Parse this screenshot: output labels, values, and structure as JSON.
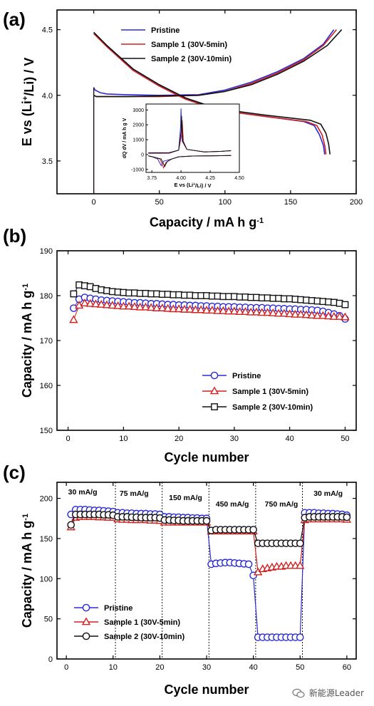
{
  "chart_data": [
    {
      "type": "line",
      "panel_label": "(a)",
      "xlabel": "Capacity / mA h g",
      "xlabel_sup": "-1",
      "ylabel_parts": [
        "E vs (Li",
        "+",
        "/Li) / V"
      ],
      "xlim": [
        -28,
        200
      ],
      "ylim": [
        3.25,
        4.65
      ],
      "xticks": [
        0,
        50,
        100,
        150,
        200
      ],
      "yticks": [
        3.5,
        4.0,
        4.5
      ],
      "legend_position": "top",
      "series": [
        {
          "name": "Pristine",
          "color": "#2b2bd6",
          "charge": [
            [
              0,
              4.06
            ],
            [
              1,
              4.04
            ],
            [
              5,
              4.02
            ],
            [
              10,
              4.01
            ],
            [
              25,
              4.005
            ],
            [
              50,
              4.0
            ],
            [
              80,
              4.005
            ],
            [
              100,
              4.04
            ],
            [
              120,
              4.1
            ],
            [
              140,
              4.18
            ],
            [
              160,
              4.28
            ],
            [
              175,
              4.39
            ],
            [
              183,
              4.5
            ]
          ],
          "discharge": [
            [
              0,
              4.47
            ],
            [
              10,
              4.38
            ],
            [
              30,
              4.2
            ],
            [
              50,
              4.08
            ],
            [
              70,
              3.98
            ],
            [
              85,
              3.92
            ],
            [
              100,
              3.88
            ],
            [
              130,
              3.84
            ],
            [
              160,
              3.8
            ],
            [
              168,
              3.77
            ],
            [
              172,
              3.7
            ],
            [
              175,
              3.62
            ],
            [
              176,
              3.55
            ]
          ]
        },
        {
          "name": "Sample 1 (30V-5min)",
          "color": "#d12020",
          "charge": [
            [
              0,
              4.0
            ],
            [
              2,
              3.99
            ],
            [
              10,
              3.99
            ],
            [
              25,
              3.99
            ],
            [
              50,
              3.99
            ],
            [
              80,
              4.0
            ],
            [
              100,
              4.03
            ],
            [
              120,
              4.09
            ],
            [
              140,
              4.17
            ],
            [
              160,
              4.27
            ],
            [
              175,
              4.38
            ],
            [
              185,
              4.5
            ]
          ],
          "discharge": [
            [
              0,
              4.47
            ],
            [
              10,
              4.37
            ],
            [
              30,
              4.19
            ],
            [
              50,
              4.07
            ],
            [
              70,
              3.97
            ],
            [
              85,
              3.92
            ],
            [
              100,
              3.88
            ],
            [
              130,
              3.84
            ],
            [
              162,
              3.8
            ],
            [
              170,
              3.77
            ],
            [
              174,
              3.7
            ],
            [
              176,
              3.62
            ],
            [
              177,
              3.55
            ]
          ]
        },
        {
          "name": "Sample 2 (30V-10min)",
          "color": "#111111",
          "charge": [
            [
              0,
              4.0
            ],
            [
              2,
              3.99
            ],
            [
              10,
              3.99
            ],
            [
              25,
              3.99
            ],
            [
              50,
              3.995
            ],
            [
              80,
              4.0
            ],
            [
              100,
              4.03
            ],
            [
              120,
              4.08
            ],
            [
              140,
              4.16
            ],
            [
              160,
              4.26
            ],
            [
              178,
              4.38
            ],
            [
              189,
              4.5
            ]
          ],
          "discharge": [
            [
              0,
              4.48
            ],
            [
              10,
              4.38
            ],
            [
              30,
              4.2
            ],
            [
              50,
              4.08
            ],
            [
              70,
              3.98
            ],
            [
              85,
              3.93
            ],
            [
              100,
              3.89
            ],
            [
              130,
              3.85
            ],
            [
              165,
              3.81
            ],
            [
              173,
              3.78
            ],
            [
              177,
              3.71
            ],
            [
              179,
              3.63
            ],
            [
              180,
              3.55
            ]
          ]
        }
      ],
      "inset": {
        "xlabel_parts": [
          "E vs (Li",
          "+",
          "/Li) / V"
        ],
        "ylabel": "dQ dV  / mA h g  V",
        "xlim": [
          3.7,
          4.5
        ],
        "ylim": [
          -1200,
          3400
        ],
        "xticks": [
          "3.75",
          "4.00",
          "4.25",
          "4.50"
        ],
        "yticks": [
          "-1000",
          "0",
          "1000",
          "2000",
          "3000"
        ],
        "charge_peaks": [
          {
            "color": "#2b2bd6",
            "peak_x": 4.0,
            "peak_y": 3100
          },
          {
            "color": "#d12020",
            "peak_x": 4.01,
            "peak_y": 2300
          },
          {
            "color": "#111111",
            "peak_x": 4.005,
            "peak_y": 2600
          }
        ],
        "discharge_peaks": [
          {
            "color": "#2b2bd6",
            "peak_x": 3.83,
            "peak_y": -750
          },
          {
            "color": "#d12020",
            "peak_x": 3.85,
            "peak_y": -900
          },
          {
            "color": "#111111",
            "peak_x": 3.86,
            "peak_y": -800
          }
        ]
      }
    },
    {
      "type": "scatter",
      "panel_label": "(b)",
      "xlabel": "Cycle number",
      "ylabel": "Capacity / mA h g",
      "ylabel_sup": "-1",
      "xlim": [
        -2,
        52
      ],
      "ylim": [
        150,
        190
      ],
      "xticks": [
        0,
        10,
        20,
        30,
        40,
        50
      ],
      "yticks": [
        150,
        160,
        170,
        180,
        190
      ],
      "legend_position": "lower-right",
      "series": [
        {
          "name": "Pristine",
          "color": "#2b2bd6",
          "marker": "circle",
          "values": [
            177.2,
            179.2,
            179.6,
            179.4,
            179.2,
            179.0,
            178.9,
            178.8,
            178.7,
            178.6,
            178.5,
            178.4,
            178.4,
            178.3,
            178.2,
            178.2,
            178.1,
            178.0,
            178.0,
            177.9,
            177.9,
            177.8,
            177.8,
            177.7,
            177.7,
            177.6,
            177.6,
            177.5,
            177.5,
            177.5,
            177.4,
            177.4,
            177.3,
            177.3,
            177.3,
            177.2,
            177.2,
            177.1,
            177.1,
            177.0,
            177.0,
            176.9,
            176.9,
            176.8,
            176.7,
            176.5,
            176.2,
            175.9,
            175.5,
            174.8
          ]
        },
        {
          "name": "Sample 1 (30V-5min)",
          "color": "#d12020",
          "marker": "triangle",
          "values": [
            174.6,
            177.8,
            178.3,
            178.2,
            178.1,
            178.0,
            177.9,
            177.8,
            177.7,
            177.6,
            177.6,
            177.5,
            177.4,
            177.4,
            177.3,
            177.2,
            177.2,
            177.1,
            177.0,
            177.0,
            176.9,
            176.9,
            176.8,
            176.8,
            176.7,
            176.7,
            176.6,
            176.6,
            176.5,
            176.5,
            176.4,
            176.4,
            176.3,
            176.3,
            176.2,
            176.2,
            176.1,
            176.0,
            176.0,
            175.9,
            175.8,
            175.8,
            175.7,
            175.6,
            175.5,
            175.5,
            175.4,
            175.3,
            175.3,
            175.2
          ]
        },
        {
          "name": "Sample 2 (30V-10min)",
          "color": "#111111",
          "marker": "square",
          "values": [
            180.4,
            182.4,
            182.2,
            182.0,
            181.6,
            181.3,
            181.1,
            180.9,
            180.8,
            180.7,
            180.6,
            180.6,
            180.5,
            180.5,
            180.4,
            180.4,
            180.3,
            180.3,
            180.2,
            180.2,
            180.1,
            180.1,
            180.0,
            180.0,
            180.0,
            179.9,
            179.9,
            179.8,
            179.8,
            179.8,
            179.7,
            179.7,
            179.6,
            179.6,
            179.5,
            179.5,
            179.4,
            179.4,
            179.3,
            179.3,
            179.2,
            179.1,
            179.0,
            178.9,
            178.8,
            178.7,
            178.6,
            178.5,
            178.3,
            178.0
          ]
        }
      ]
    },
    {
      "type": "scatter",
      "panel_label": "(c)",
      "xlabel": "Cycle number",
      "ylabel": "Capacity / mA h g",
      "ylabel_sup": "-1",
      "xlim": [
        -2,
        62
      ],
      "ylim": [
        0,
        220
      ],
      "xticks": [
        0,
        10,
        20,
        30,
        40,
        50,
        60
      ],
      "yticks": [
        0,
        50,
        100,
        150,
        200
      ],
      "legend_position": "lower-left",
      "rate_dividers": [
        10.5,
        20.5,
        30.5,
        40.5,
        50.5
      ],
      "rate_labels": [
        {
          "text": "30 mA/g",
          "x": 3.5,
          "y": 205
        },
        {
          "text": "75 mA/g",
          "x": 14.5,
          "y": 203
        },
        {
          "text": "150 mA/g",
          "x": 25.5,
          "y": 198
        },
        {
          "text": "450 mA/g",
          "x": 35.5,
          "y": 190
        },
        {
          "text": "750 mA/g",
          "x": 46,
          "y": 190
        },
        {
          "text": "30 mA/g",
          "x": 56,
          "y": 203
        }
      ],
      "series": [
        {
          "name": "Pristine",
          "color": "#2b2bd6",
          "marker": "circle",
          "values": [
            180,
            186,
            186,
            186,
            185.5,
            185,
            185,
            184.5,
            184,
            183.5,
            182,
            182,
            181.5,
            181.5,
            181,
            181,
            181,
            180.5,
            180.5,
            180,
            177,
            177,
            176.5,
            176.5,
            176,
            176,
            175.5,
            175.5,
            175,
            175,
            118,
            119,
            119.5,
            120,
            120,
            119.5,
            119,
            118.5,
            118,
            104,
            27,
            27,
            27,
            27,
            27,
            27,
            27,
            27,
            27,
            27,
            182,
            182,
            182,
            181.5,
            181.5,
            181,
            181,
            180.5,
            180,
            179
          ]
        },
        {
          "name": "Sample 1 (30V-5min)",
          "color": "#d12020",
          "marker": "triangle",
          "values": [
            164,
            176,
            177,
            177,
            177,
            177,
            176.5,
            176.5,
            176,
            176,
            174,
            173.5,
            173.5,
            173,
            173,
            173,
            173,
            172.5,
            172.5,
            172,
            170,
            170,
            170,
            170,
            170,
            170,
            170,
            170,
            170,
            170,
            159,
            159,
            159,
            159,
            159,
            159,
            159,
            159,
            159,
            159,
            108,
            112,
            113,
            114,
            115,
            115,
            116,
            116,
            116,
            116,
            173,
            174,
            174,
            174,
            174,
            174,
            174,
            174,
            174,
            173.5
          ]
        },
        {
          "name": "Sample 2 (30V-10min)",
          "color": "#111111",
          "marker": "circle",
          "values": [
            167,
            180,
            180,
            180,
            180,
            180,
            180,
            179.5,
            179.5,
            179,
            177,
            177,
            177,
            176.5,
            176.5,
            176,
            176,
            176,
            176,
            175.5,
            173,
            173,
            172.5,
            172.5,
            172,
            172,
            172,
            172,
            172,
            172,
            160,
            161,
            161,
            161,
            161,
            161,
            161,
            161,
            161,
            161,
            144,
            144,
            144,
            144,
            144,
            144,
            144,
            144,
            144,
            144,
            176,
            177,
            177,
            177,
            177,
            177,
            177,
            177,
            177,
            176.5
          ]
        }
      ]
    }
  ],
  "watermark": {
    "text": "新能源Leader"
  }
}
